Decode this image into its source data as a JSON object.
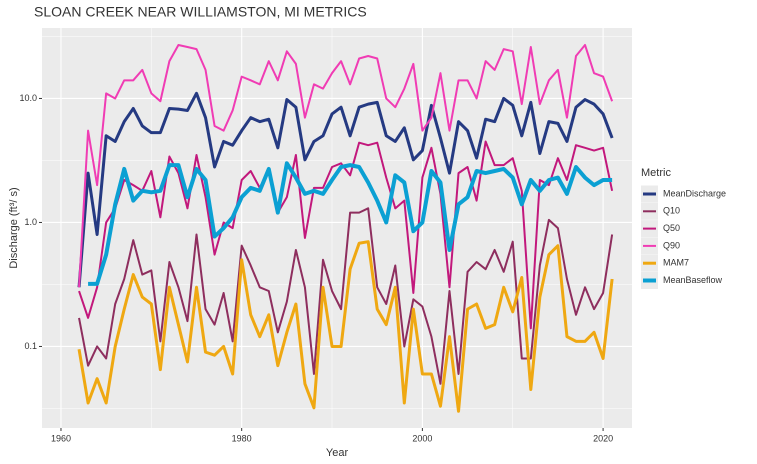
{
  "chart_data": {
    "type": "line",
    "title": "SLOAN CREEK NEAR WILLIAMSTON, MI  METRICS",
    "x_label": "Year",
    "y_label": "Discharge (ft³/ s)",
    "legend_title": "Metric",
    "legend": "right",
    "log_y": true,
    "grid": true,
    "xlim": [
      1957.9,
      2023.2
    ],
    "xticks": [
      1960,
      1980,
      2000,
      2020
    ],
    "ylim": [
      0.022,
      37
    ],
    "yticks": [
      0.1,
      {
        "value": 1,
        "label": "1.0"
      },
      {
        "value": 10,
        "label": "10.0"
      }
    ],
    "x": [
      1962,
      1963,
      1964,
      1965,
      1966,
      1967,
      1968,
      1969,
      1970,
      1971,
      1972,
      1973,
      1974,
      1975,
      1976,
      1977,
      1978,
      1979,
      1980,
      1981,
      1982,
      1983,
      1984,
      1985,
      1986,
      1987,
      1988,
      1989,
      1990,
      1991,
      1992,
      1993,
      1994,
      1995,
      1996,
      1997,
      1998,
      1999,
      2000,
      2001,
      2002,
      2003,
      2004,
      2005,
      2006,
      2007,
      2008,
      2009,
      2010,
      2011,
      2012,
      2013,
      2014,
      2015,
      2016,
      2017,
      2018,
      2019,
      2020,
      2021
    ],
    "series": [
      {
        "name": "MeanDischarge",
        "color": "#253A82",
        "width": 3,
        "values": [
          0.3,
          2.5,
          0.8,
          5,
          4.5,
          6.5,
          8.3,
          6,
          5.3,
          5.3,
          8.3,
          8.2,
          8,
          11,
          7,
          2.8,
          4.5,
          4.2,
          5.5,
          7,
          6.5,
          6.8,
          4,
          9.8,
          8.5,
          3.2,
          4.5,
          5,
          7.5,
          8.5,
          5,
          8.5,
          9,
          9.3,
          5,
          4.5,
          5.8,
          3.2,
          3.8,
          8.8,
          4.8,
          2.5,
          6.5,
          5.5,
          3.3,
          6.8,
          6.5,
          10,
          8.8,
          5,
          9.3,
          3.6,
          6.5,
          6.3,
          4.5,
          8.5,
          9.8,
          9,
          7.5,
          4.8
        ]
      },
      {
        "name": "Q10",
        "color": "#8E2E5E",
        "width": 2,
        "values": [
          0.17,
          0.07,
          0.1,
          0.08,
          0.22,
          0.35,
          0.72,
          0.38,
          0.41,
          0.11,
          0.48,
          0.3,
          0.16,
          0.8,
          0.2,
          0.15,
          0.27,
          0.11,
          0.65,
          0.45,
          0.3,
          0.28,
          0.13,
          0.23,
          0.6,
          0.3,
          0.06,
          0.5,
          0.28,
          0.2,
          1.2,
          1.2,
          1.3,
          0.3,
          0.22,
          0.45,
          0.1,
          0.24,
          0.21,
          0.12,
          0.05,
          0.28,
          0.06,
          0.4,
          0.48,
          0.42,
          0.6,
          0.4,
          0.7,
          0.08,
          0.08,
          0.45,
          1.05,
          0.9,
          0.35,
          0.18,
          0.3,
          0.2,
          0.27,
          0.8
        ]
      },
      {
        "name": "Q50",
        "color": "#C2187C",
        "width": 2,
        "values": [
          0.28,
          0.17,
          0.3,
          1.0,
          1.3,
          2.2,
          2.0,
          1.8,
          2.6,
          1.1,
          3.4,
          2.5,
          1.3,
          3.5,
          1.6,
          0.55,
          1.0,
          0.9,
          2.2,
          2.6,
          1.9,
          2.6,
          1.2,
          1.6,
          3.5,
          0.75,
          1.9,
          1.9,
          2.8,
          3.0,
          2.4,
          4.4,
          4.2,
          4.4,
          2.3,
          1.3,
          1.5,
          0.27,
          2.3,
          4.0,
          1.7,
          0.3,
          2.5,
          2.8,
          1.5,
          4.5,
          2.9,
          2.9,
          3.3,
          1.8,
          0.14,
          2.2,
          2.0,
          3.3,
          2.2,
          4.2,
          4.0,
          3.8,
          4.0,
          1.8
        ]
      },
      {
        "name": "Q90",
        "color": "#F03CB4",
        "width": 2,
        "values": [
          0.3,
          5.5,
          2.0,
          11,
          10,
          14,
          14,
          17,
          11,
          9.5,
          20,
          27,
          26,
          25,
          17,
          6,
          5.5,
          8,
          15,
          14,
          13,
          20,
          14,
          24,
          19,
          7,
          13,
          12,
          16,
          20,
          13,
          21,
          22,
          21,
          10,
          8.5,
          12,
          19,
          5.5,
          7,
          16,
          5.5,
          14,
          14,
          10,
          20,
          17,
          25,
          24,
          9,
          26,
          9,
          14,
          17,
          7,
          22,
          27,
          16,
          15,
          9.5
        ]
      },
      {
        "name": "MAM7",
        "color": "#EFA812",
        "width": 3,
        "values": [
          0.095,
          0.035,
          0.055,
          0.035,
          0.1,
          0.2,
          0.38,
          0.25,
          0.22,
          0.065,
          0.3,
          0.15,
          0.075,
          0.3,
          0.09,
          0.085,
          0.1,
          0.06,
          0.5,
          0.18,
          0.12,
          0.18,
          0.07,
          0.13,
          0.22,
          0.05,
          0.032,
          0.3,
          0.1,
          0.1,
          0.42,
          0.68,
          0.7,
          0.2,
          0.15,
          0.3,
          0.035,
          0.2,
          0.06,
          0.06,
          0.033,
          0.12,
          0.03,
          0.2,
          0.22,
          0.14,
          0.15,
          0.3,
          0.19,
          0.36,
          0.045,
          0.25,
          0.55,
          0.65,
          0.12,
          0.11,
          0.11,
          0.13,
          0.08,
          0.35
        ]
      },
      {
        "name": "MeanBaseflow",
        "color": "#0BA0D3",
        "width": 4,
        "values": [
          null,
          0.32,
          0.32,
          0.55,
          1.4,
          2.7,
          1.5,
          1.8,
          1.75,
          1.8,
          2.9,
          2.9,
          1.6,
          2.7,
          2.2,
          0.77,
          0.9,
          1.1,
          1.6,
          1.9,
          1.8,
          2.7,
          1.2,
          3.0,
          2.3,
          1.7,
          1.8,
          1.7,
          2.2,
          2.8,
          2.9,
          2.8,
          2.1,
          1.5,
          1.0,
          2.4,
          2.1,
          0.85,
          1.0,
          2.6,
          2.1,
          0.6,
          1.4,
          1.6,
          2.6,
          2.5,
          2.6,
          2.7,
          2.3,
          1.4,
          2.2,
          1.8,
          2.2,
          2.3,
          1.7,
          2.8,
          2.3,
          2.0,
          2.2,
          2.2
        ]
      }
    ]
  }
}
